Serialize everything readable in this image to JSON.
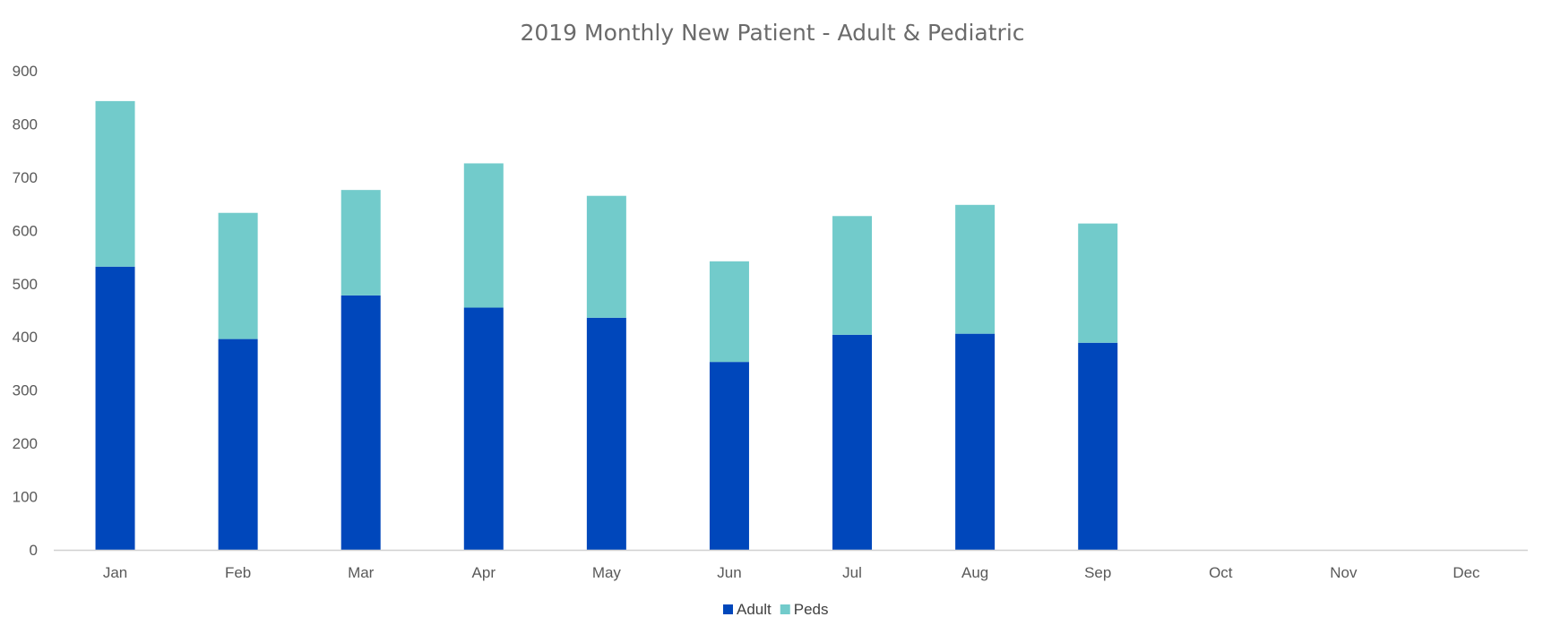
{
  "chart_data": {
    "type": "bar",
    "stacked": true,
    "title": "2019 Monthly New Patient - Adult & Pediatric",
    "xlabel": "",
    "ylabel": "",
    "ylim": [
      0,
      900
    ],
    "yticks": [
      0,
      100,
      200,
      300,
      400,
      500,
      600,
      700,
      800,
      900
    ],
    "categories": [
      "Jan",
      "Feb",
      "Mar",
      "Apr",
      "May",
      "Jun",
      "Jul",
      "Aug",
      "Sep",
      "Oct",
      "Nov",
      "Dec"
    ],
    "series": [
      {
        "name": "Adult",
        "color": "#0047BB",
        "values": [
          532,
          396,
          478,
          455,
          436,
          353,
          404,
          406,
          389,
          null,
          null,
          null
        ]
      },
      {
        "name": "Peds",
        "color": "#72CBCB",
        "values": [
          311,
          237,
          198,
          271,
          229,
          189,
          223,
          242,
          224,
          null,
          null,
          null
        ]
      }
    ],
    "grid": false,
    "legend_position": "bottom"
  }
}
